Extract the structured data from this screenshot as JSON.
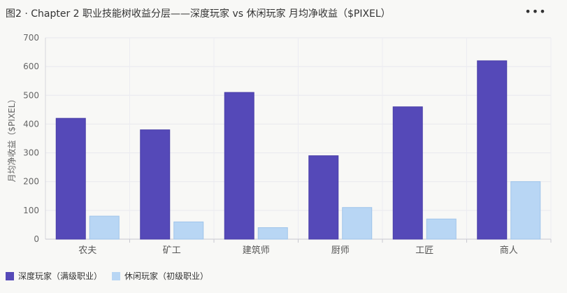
{
  "header": {
    "title": "图2 · Chapter 2 职业技能树收益分层——深度玩家 vs 休闲玩家 月均净收益（$PIXEL）",
    "more_icon": "more-horizontal-icon"
  },
  "chart_data": {
    "type": "bar",
    "categories": [
      "农夫",
      "矿工",
      "建筑师",
      "厨师",
      "工匠",
      "商人"
    ],
    "series": [
      {
        "name": "深度玩家（满级职业）",
        "values": [
          420,
          380,
          510,
          290,
          460,
          620
        ],
        "color": "#5549b8"
      },
      {
        "name": "休闲玩家（初级职业）",
        "values": [
          80,
          60,
          40,
          110,
          70,
          200
        ],
        "color": "#b8d6f4"
      }
    ],
    "ylabel": "月均净收益（$PIXEL）",
    "xlabel": "",
    "ylim": [
      0,
      700
    ],
    "yticks": [
      0,
      100,
      200,
      300,
      400,
      500,
      600,
      700
    ],
    "grid": true,
    "legend_position": "bottom-left"
  }
}
